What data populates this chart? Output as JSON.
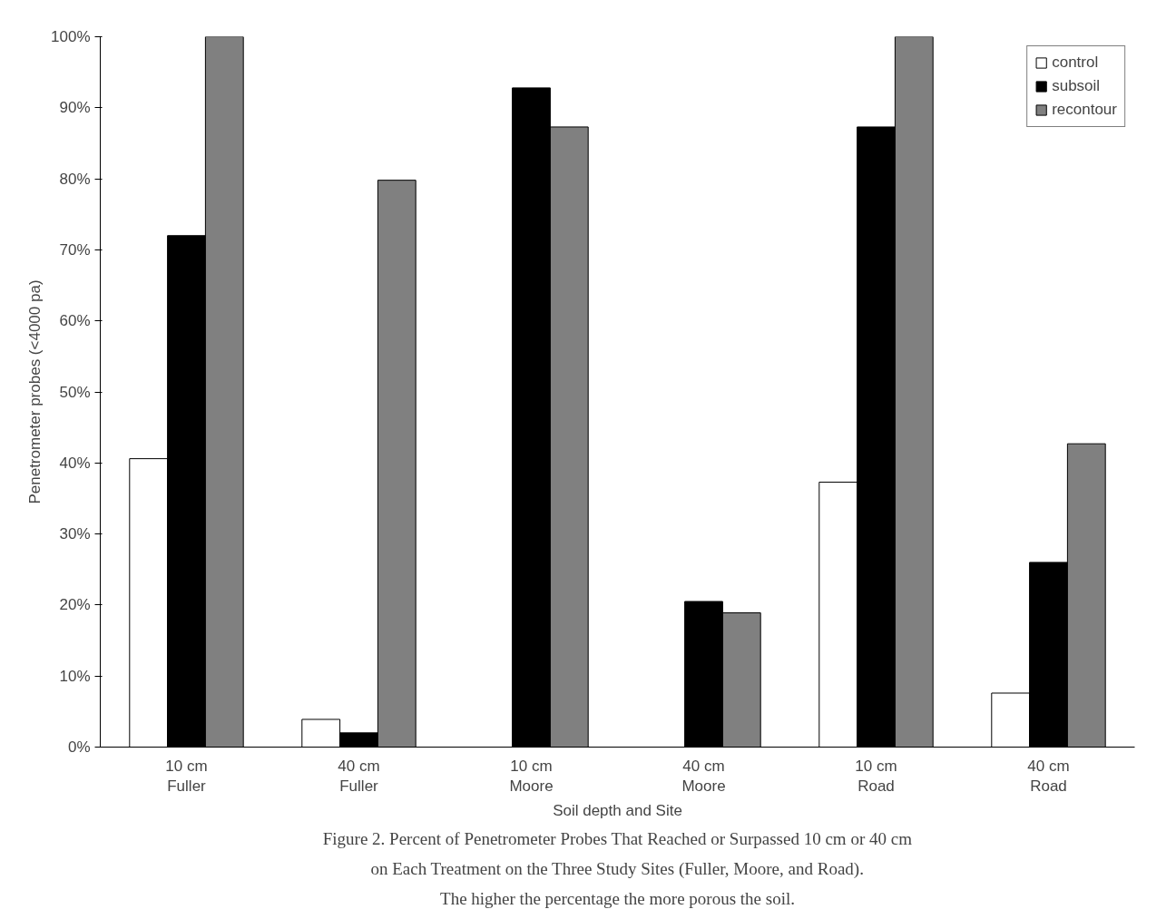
{
  "chart_data": {
    "type": "bar",
    "xlabel": "Soil depth and Site",
    "ylabel": "Penetrometer probes (<4000 pa)",
    "categories": [
      "10 cm\nFuller",
      "40 cm\nFuller",
      "10 cm\nMoore",
      "40 cm\nMoore",
      "10 cm\nRoad",
      "40 cm\nRoad"
    ],
    "series": [
      {
        "name": "control",
        "color": "#ffffff",
        "values": [
          40.6,
          3.9,
          0,
          0,
          37.3,
          7.6
        ]
      },
      {
        "name": "subsoil",
        "color": "#000000",
        "values": [
          72,
          2,
          92.8,
          20.5,
          87.3,
          26
        ]
      },
      {
        "name": "recontour",
        "color": "#808080",
        "values": [
          100,
          79.8,
          87.3,
          18.9,
          100,
          42.7
        ]
      }
    ],
    "ylim": [
      0,
      100
    ],
    "yticks": [
      {
        "value": 0,
        "label": "0%"
      },
      {
        "value": 10,
        "label": "10%"
      },
      {
        "value": 20,
        "label": "20%"
      },
      {
        "value": 30,
        "label": "30%"
      },
      {
        "value": 40,
        "label": "40%"
      },
      {
        "value": 50,
        "label": "50%"
      },
      {
        "value": 60,
        "label": "60%"
      },
      {
        "value": 70,
        "label": "70%"
      },
      {
        "value": 80,
        "label": "80%"
      },
      {
        "value": 90,
        "label": "90%"
      },
      {
        "value": 100,
        "label": "100%"
      }
    ],
    "grid": false,
    "legend": "top right",
    "annotations": [
      "Figure 2. Percent of Penetrometer Probes That Reached or Surpassed 10 cm or 40 cm",
      "on Each Treatment on the Three Study Sites (Fuller, Moore, and Road).",
      "The higher the percentage the more porous the soil."
    ]
  }
}
